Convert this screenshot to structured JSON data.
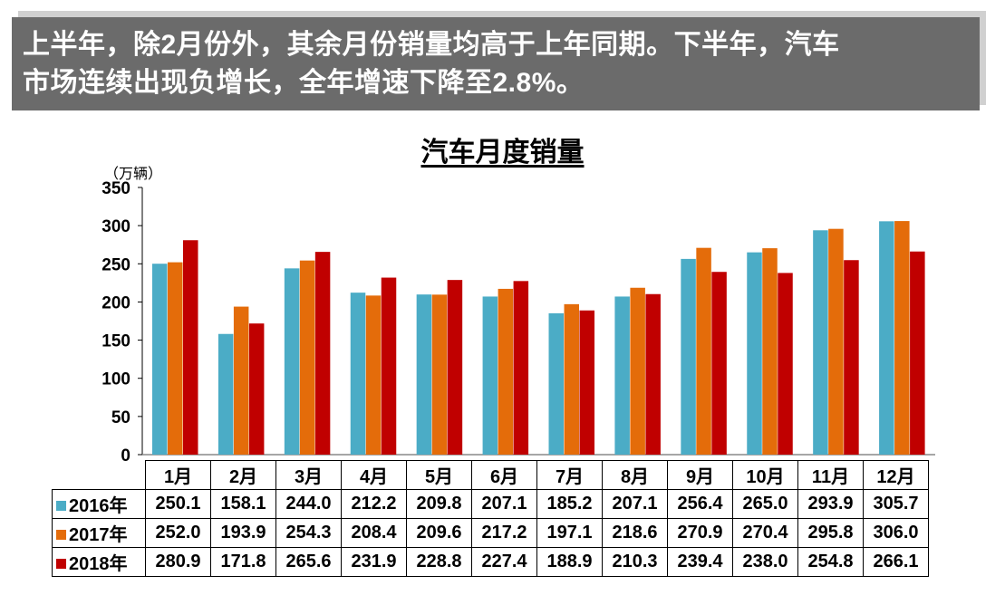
{
  "banner": {
    "line1": "上半年，除2月份外，其余月份销量均高于上年同期。下半年，汽车",
    "line2": "市场连续出现负增长，全年增速下降至2.8%。"
  },
  "chart_data": {
    "type": "bar",
    "title": "汽车月度销量",
    "ylabel": "（万辆）",
    "ylim": [
      0,
      350
    ],
    "yticks": [
      0,
      50,
      100,
      150,
      200,
      250,
      300,
      350
    ],
    "grid": false,
    "legend": "table",
    "categories": [
      "1月",
      "2月",
      "3月",
      "4月",
      "5月",
      "6月",
      "7月",
      "8月",
      "9月",
      "10月",
      "11月",
      "12月"
    ],
    "series": [
      {
        "name": "2016年",
        "color": "#4bacc6",
        "values": [
          250.1,
          158.1,
          244.0,
          212.2,
          209.8,
          207.1,
          185.2,
          207.1,
          256.4,
          265.0,
          293.9,
          305.7
        ],
        "labels": [
          "250.1",
          "158.1",
          "244.0",
          "212.2",
          "209.8",
          "207.1",
          "185.2",
          "207.1",
          "256.4",
          "265.0",
          "293.9",
          "305.7"
        ]
      },
      {
        "name": "2017年",
        "color": "#e46c0a",
        "values": [
          252.0,
          193.9,
          254.3,
          208.4,
          209.6,
          217.2,
          197.1,
          218.6,
          270.9,
          270.4,
          295.8,
          306.0
        ],
        "labels": [
          "252.0",
          "193.9",
          "254.3",
          "208.4",
          "209.6",
          "217.2",
          "197.1",
          "218.6",
          "270.9",
          "270.4",
          "295.8",
          "306.0"
        ]
      },
      {
        "name": "2018年",
        "color": "#c00000",
        "values": [
          280.9,
          171.8,
          265.6,
          231.9,
          228.8,
          227.4,
          188.9,
          210.3,
          239.4,
          238.0,
          254.8,
          266.1
        ],
        "labels": [
          "280.9",
          "171.8",
          "265.6",
          "231.9",
          "228.8",
          "227.4",
          "188.9",
          "210.3",
          "239.4",
          "238.0",
          "254.8",
          "266.1"
        ]
      }
    ]
  }
}
